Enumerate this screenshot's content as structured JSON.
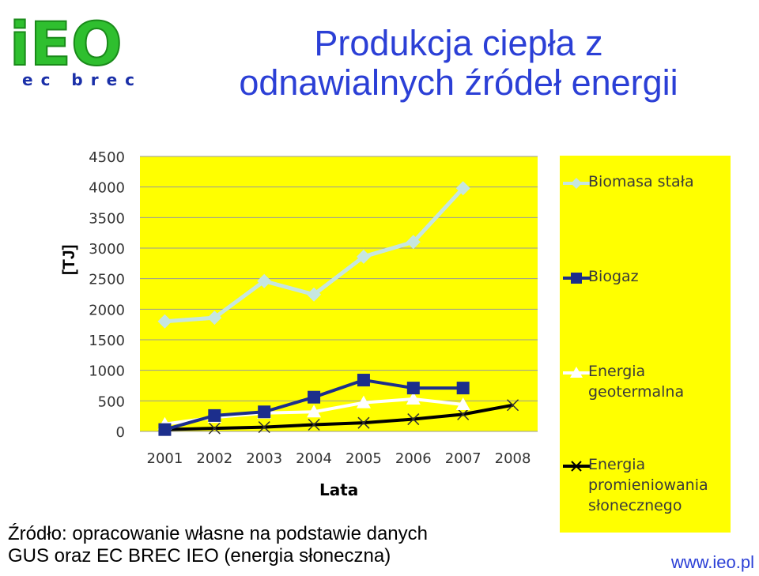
{
  "logo": {
    "text": "iEO",
    "subtext": "ec brec"
  },
  "title": {
    "line1": "Produkcja ciepła z",
    "line2": "odnawialnych źródeł energii"
  },
  "source": {
    "text": "Źródło: opracowanie własne na podstawie danych\nGUS oraz EC BREC IEO  (energia słoneczna)"
  },
  "website": "www.ieo.pl",
  "colors": {
    "plot_bg": "#ffff00",
    "biomasa": "#c6e6e0",
    "biogaz": "#1c2e8c",
    "geo": "#ffffff",
    "solar": "#000000",
    "title": "#2b3fd6"
  },
  "chart_data": {
    "type": "line",
    "ylabel": "[TJ]",
    "xlabel": "Lata",
    "ylim": [
      0,
      4500
    ],
    "yticks": [
      "4500",
      "4000",
      "3500",
      "3000",
      "2500",
      "2000",
      "1500",
      "1000",
      "500",
      "0"
    ],
    "categories": [
      "2001",
      "2002",
      "2003",
      "2004",
      "2005",
      "2006",
      "2007",
      "2008"
    ],
    "grid": true,
    "legend_position": "right",
    "series": [
      {
        "name": "Biomasa stała",
        "marker": "diamond",
        "values": [
          1800,
          1860,
          2460,
          2240,
          2860,
          3100,
          3980,
          null
        ]
      },
      {
        "name": "Biogaz",
        "marker": "square",
        "values": [
          30,
          260,
          320,
          560,
          840,
          710,
          710,
          null
        ]
      },
      {
        "name": "Energia\ngeotermalna",
        "marker": "triangle",
        "values": [
          120,
          230,
          300,
          320,
          470,
          530,
          440,
          null
        ]
      },
      {
        "name": "Energia\npromieniowania\nsłonecznego",
        "marker": "x",
        "values": [
          30,
          50,
          70,
          110,
          140,
          200,
          280,
          430
        ]
      }
    ]
  }
}
